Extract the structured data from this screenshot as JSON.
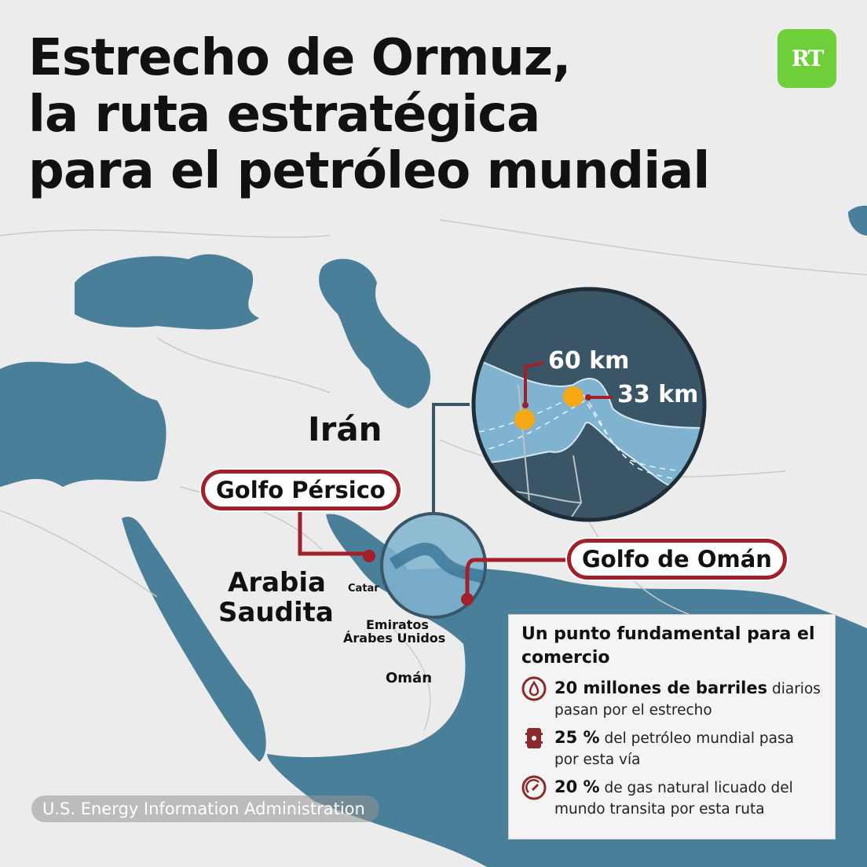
{
  "title_lines": [
    "Estrecho de Ormuz,",
    "la ruta estratégica",
    "para el petróleo mundial"
  ],
  "logo": "RT",
  "colors": {
    "land": "#ececec",
    "sea": "#4a7f9a",
    "zoom_dark": "#3a5566",
    "zoom_water": "#7fb3cf",
    "accent_red": "#a31f2a",
    "marker": "#f5a814",
    "logo_green": "#6fcf3a"
  },
  "labels": {
    "iran": "Irán",
    "arabia_1": "Arabia",
    "arabia_2": "Saudita",
    "catar": "Catar",
    "eau_1": "Emiratos",
    "eau_2": "Árabes Unidos",
    "oman": "Omán"
  },
  "callouts": {
    "golfo_persico": "Golfo Pérsico",
    "golfo_oman": "Golfo de Omán"
  },
  "inset": {
    "width_1": "60 km",
    "width_2": "33 km"
  },
  "info": {
    "heading": "Un punto fundamental para el comercio",
    "items": [
      {
        "icon": "oil-drop-icon",
        "bold": "20 millones de barriles",
        "text": " diarios pasan por el estrecho"
      },
      {
        "icon": "barrel-icon",
        "bold": "25 %",
        "text": " del petróleo mundial pasa por esta vía"
      },
      {
        "icon": "gauge-icon",
        "bold": "20 %",
        "text": " de gas natural licuado del mundo transita por esta ruta"
      }
    ]
  },
  "source": "U.S. Energy Information Administration"
}
